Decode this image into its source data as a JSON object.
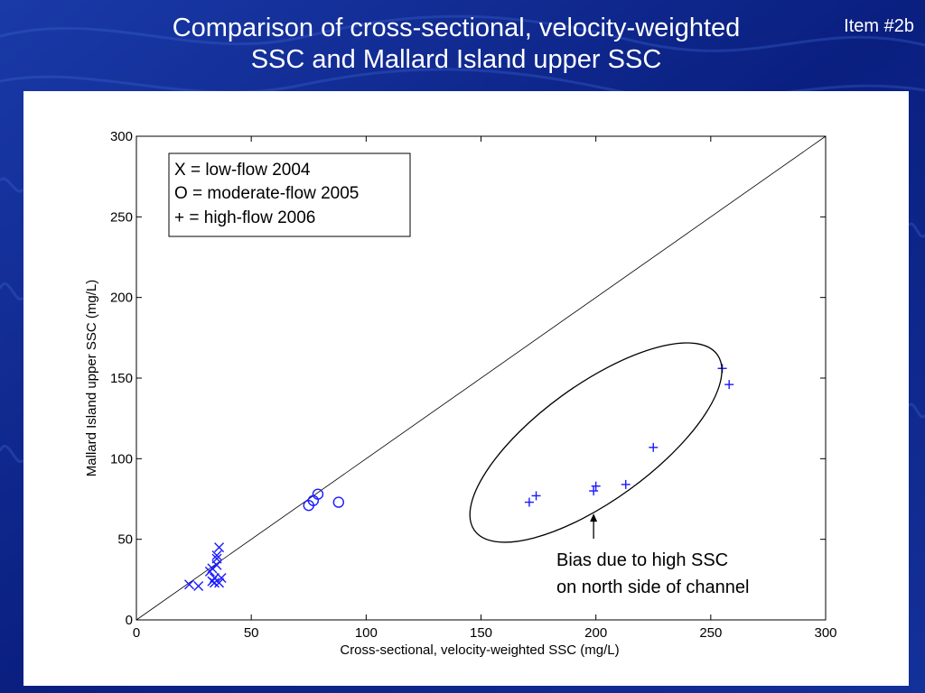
{
  "slide": {
    "title_line1": "Comparison of cross-sectional, velocity-weighted",
    "title_line2": "SSC and Mallard Island upper SSC",
    "item_tag": "Item #2b"
  },
  "chart_data": {
    "type": "scatter",
    "title": "",
    "xlabel": "Cross-sectional, velocity-weighted SSC (mg/L)",
    "ylabel": "Mallard Island upper SSC (mg/L)",
    "xlim": [
      0,
      300
    ],
    "ylim": [
      0,
      300
    ],
    "xticks": [
      0,
      50,
      100,
      150,
      200,
      250,
      300
    ],
    "yticks": [
      0,
      50,
      100,
      150,
      200,
      250,
      300
    ],
    "grid": false,
    "legend_entries": [
      "X = low-flow 2004",
      "O = moderate-flow 2005",
      "+ = high-flow 2006"
    ],
    "legend_position": "top-left",
    "marker_color": "#1a1aff",
    "reference_line": {
      "type": "1:1",
      "from": [
        0,
        0
      ],
      "to": [
        300,
        300
      ]
    },
    "series": [
      {
        "marker": "x",
        "points": [
          [
            23,
            22
          ],
          [
            27,
            21
          ],
          [
            32,
            30
          ],
          [
            33,
            24
          ],
          [
            34,
            26
          ],
          [
            34,
            23
          ],
          [
            35,
            34
          ],
          [
            35,
            40
          ],
          [
            36,
            23
          ],
          [
            37,
            26
          ],
          [
            36,
            45
          ],
          [
            35,
            38
          ],
          [
            33,
            32
          ]
        ]
      },
      {
        "marker": "o",
        "points": [
          [
            75,
            71
          ],
          [
            77,
            74
          ],
          [
            79,
            78
          ],
          [
            88,
            73
          ]
        ]
      },
      {
        "marker": "+",
        "points": [
          [
            171,
            73
          ],
          [
            174,
            77
          ],
          [
            199,
            80
          ],
          [
            200,
            83
          ],
          [
            213,
            84
          ],
          [
            225,
            107
          ],
          [
            255,
            156
          ],
          [
            258,
            146
          ]
        ]
      }
    ],
    "annotations": [
      {
        "line1": "Bias due to high SSC",
        "line2": "on north side of channel",
        "arrow_to": [
          199,
          66
        ]
      }
    ],
    "highlight_ellipse": {
      "center": [
        200,
        110
      ],
      "note": "encloses high-flow 2006 points"
    }
  }
}
